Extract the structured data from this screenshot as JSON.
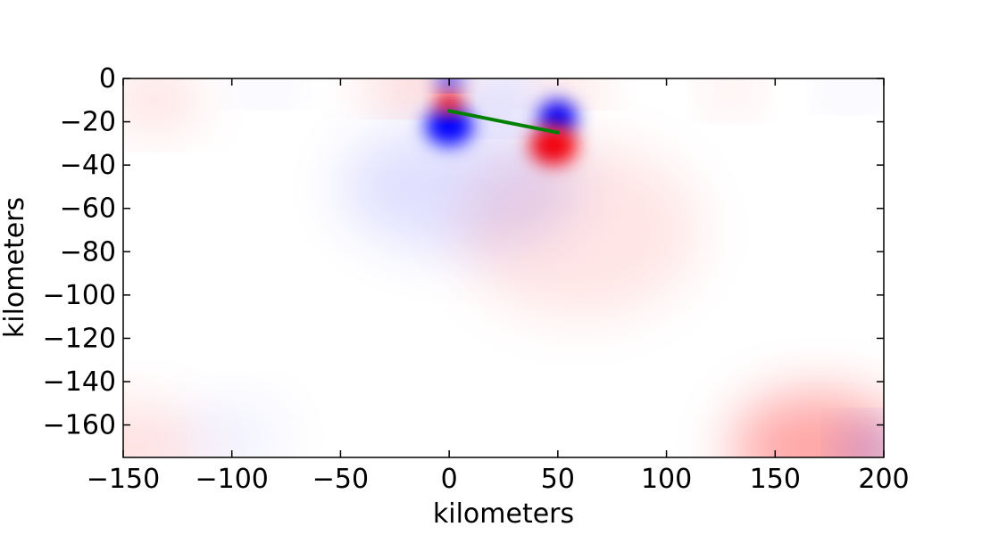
{
  "chart_data": {
    "type": "heatmap",
    "title": "",
    "xlabel": "kilometers",
    "ylabel": "kilometers",
    "xlim": [
      -150,
      200
    ],
    "ylim": [
      -175,
      0
    ],
    "xticks": [
      -150,
      -100,
      -50,
      0,
      50,
      100,
      150,
      200
    ],
    "yticks": [
      0,
      -20,
      -40,
      -60,
      -80,
      -100,
      -120,
      -140,
      -160
    ],
    "xtick_labels": [
      "−150",
      "−100",
      "−50",
      "0",
      "50",
      "100",
      "150",
      "200"
    ],
    "ytick_labels": [
      "0",
      "−20",
      "−40",
      "−60",
      "−80",
      "−100",
      "−120",
      "−140",
      "−160"
    ],
    "colormap": "bwr",
    "colors": {
      "positive": "#ff0000",
      "negative": "#0000ff",
      "zero": "#ffffff",
      "fault_line": "#008000"
    },
    "fault_line": {
      "x": [
        0,
        50
      ],
      "y": [
        -15,
        -25
      ]
    },
    "lobes": [
      {
        "sign": "negative",
        "x": 0,
        "y": -22,
        "rx": 11,
        "ry": 9,
        "strength": 1.0
      },
      {
        "sign": "positive",
        "x": 0,
        "y": -11,
        "rx": 6,
        "ry": 5,
        "strength": 1.0
      },
      {
        "sign": "negative",
        "x": 50,
        "y": -18,
        "rx": 9,
        "ry": 8,
        "strength": 1.0
      },
      {
        "sign": "positive",
        "x": 48,
        "y": -31,
        "rx": 11,
        "ry": 9,
        "strength": 1.0
      },
      {
        "sign": "negative",
        "x": 0,
        "y": -1,
        "rx": 7,
        "ry": 3,
        "strength": 0.9
      },
      {
        "sign": "positive",
        "x": -15,
        "y": -3,
        "rx": 25,
        "ry": 8,
        "strength": 0.25
      },
      {
        "sign": "negative",
        "x": 25,
        "y": -8,
        "rx": 15,
        "ry": 10,
        "strength": 0.2
      },
      {
        "sign": "positive",
        "x": 55,
        "y": -3,
        "rx": 15,
        "ry": 6,
        "strength": 0.25
      },
      {
        "sign": "negative",
        "x": 5,
        "y": -50,
        "rx": 55,
        "ry": 30,
        "strength": 0.12
      },
      {
        "sign": "positive",
        "x": 60,
        "y": -70,
        "rx": 55,
        "ry": 40,
        "strength": 0.1
      },
      {
        "sign": "positive",
        "x": -135,
        "y": -10,
        "rx": 20,
        "ry": 12,
        "strength": 0.15
      },
      {
        "sign": "positive",
        "x": 130,
        "y": -5,
        "rx": 10,
        "ry": 8,
        "strength": 0.15
      },
      {
        "sign": "negative",
        "x": 185,
        "y": -5,
        "rx": 10,
        "ry": 6,
        "strength": 0.12
      },
      {
        "sign": "negative",
        "x": -85,
        "y": -3,
        "rx": 12,
        "ry": 6,
        "strength": 0.1
      },
      {
        "sign": "positive",
        "x": 170,
        "y": -170,
        "rx": 40,
        "ry": 25,
        "strength": 0.35
      },
      {
        "sign": "negative",
        "x": 195,
        "y": -172,
        "rx": 12,
        "ry": 10,
        "strength": 0.35
      },
      {
        "sign": "positive",
        "x": -150,
        "y": -170,
        "rx": 35,
        "ry": 20,
        "strength": 0.12
      },
      {
        "sign": "negative",
        "x": -100,
        "y": -165,
        "rx": 25,
        "ry": 15,
        "strength": 0.06
      }
    ]
  }
}
